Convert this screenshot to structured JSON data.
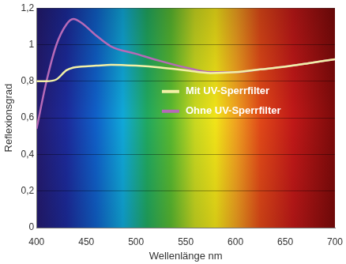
{
  "chart_data": {
    "type": "line",
    "x_label": "Wellenlänge nm",
    "y_label": "Reflexionsgrad",
    "x": [
      400,
      410,
      420,
      430,
      437,
      445,
      460,
      475,
      500,
      525,
      550,
      575,
      600,
      625,
      650,
      675,
      700
    ],
    "series": [
      {
        "name": "Mit UV-Sperrfilter",
        "color": "#f2f0a6",
        "values": [
          0.8,
          0.8,
          0.81,
          0.86,
          0.875,
          0.88,
          0.885,
          0.89,
          0.885,
          0.875,
          0.86,
          0.845,
          0.85,
          0.865,
          0.88,
          0.9,
          0.92
        ]
      },
      {
        "name": "Ohne UV-Sperrfilter",
        "color": "#b66ab8",
        "values": [
          0.54,
          0.8,
          1.0,
          1.11,
          1.14,
          1.12,
          1.05,
          0.99,
          0.95,
          0.91,
          0.875,
          0.85,
          0.85,
          0.865,
          0.88,
          0.9,
          0.92
        ]
      }
    ],
    "xlim": [
      400,
      700
    ],
    "xticks": [
      400,
      450,
      500,
      550,
      600,
      650,
      700
    ],
    "ylim": [
      0,
      1.2
    ],
    "yticks": [
      0,
      {
        "value": 0.2,
        "label": "0,2"
      },
      {
        "value": 0.4,
        "label": "0,4"
      },
      {
        "value": 0.6,
        "label": "0,6"
      },
      {
        "value": 0.8,
        "label": "0,8"
      },
      1,
      {
        "value": 1.2,
        "label": "1,2"
      }
    ],
    "grid": true,
    "legend": "center"
  }
}
